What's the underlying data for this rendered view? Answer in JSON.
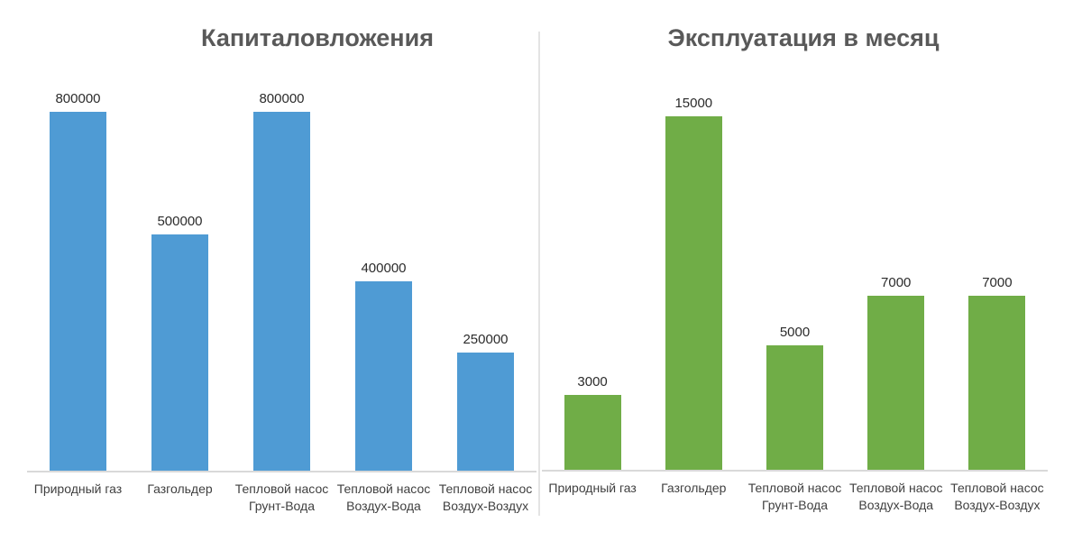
{
  "page": {
    "background_color": "#ffffff",
    "divider_color": "#e4e4e4",
    "axis_line_color": "#d9d9d9",
    "title_color": "#595959",
    "value_label_color": "#2b2b2b",
    "category_label_color": "#404040"
  },
  "chart_data": [
    {
      "type": "bar",
      "title": "Капиталовложения",
      "categories": [
        "Природный газ",
        "Газгольдер",
        "Тепловой насос Грунт-Вода",
        "Тепловой насос Воздух-Вода",
        "Тепловой насос Воздух-Воздух"
      ],
      "values": [
        800000,
        500000,
        800000,
        400000,
        250000
      ],
      "data_labels": [
        "800000",
        "500000",
        "800000",
        "400000",
        "250000"
      ],
      "bar_color": "#4f9bd4",
      "xlabel": "",
      "ylabel": "",
      "ylim": [
        0,
        800000
      ],
      "grid": false,
      "legend": "none",
      "y_axis_visible": false,
      "baseline_visible": true
    },
    {
      "type": "bar",
      "title": "Эксплуатация в месяц",
      "categories": [
        "Природный газ",
        "Газгольдер",
        "Тепловой насос Грунт-Вода",
        "Тепловой насос Воздух-Вода",
        "Тепловой насос Воздух-Воздух"
      ],
      "values": [
        3000,
        15000,
        5000,
        7000,
        7000
      ],
      "data_labels": [
        "3000",
        "15000",
        "5000",
        "7000",
        "7000"
      ],
      "bar_color": "#70ad47",
      "xlabel": "",
      "ylabel": "",
      "ylim": [
        0,
        15000
      ],
      "grid": false,
      "legend": "none",
      "y_axis_visible": false,
      "baseline_visible": true
    }
  ]
}
